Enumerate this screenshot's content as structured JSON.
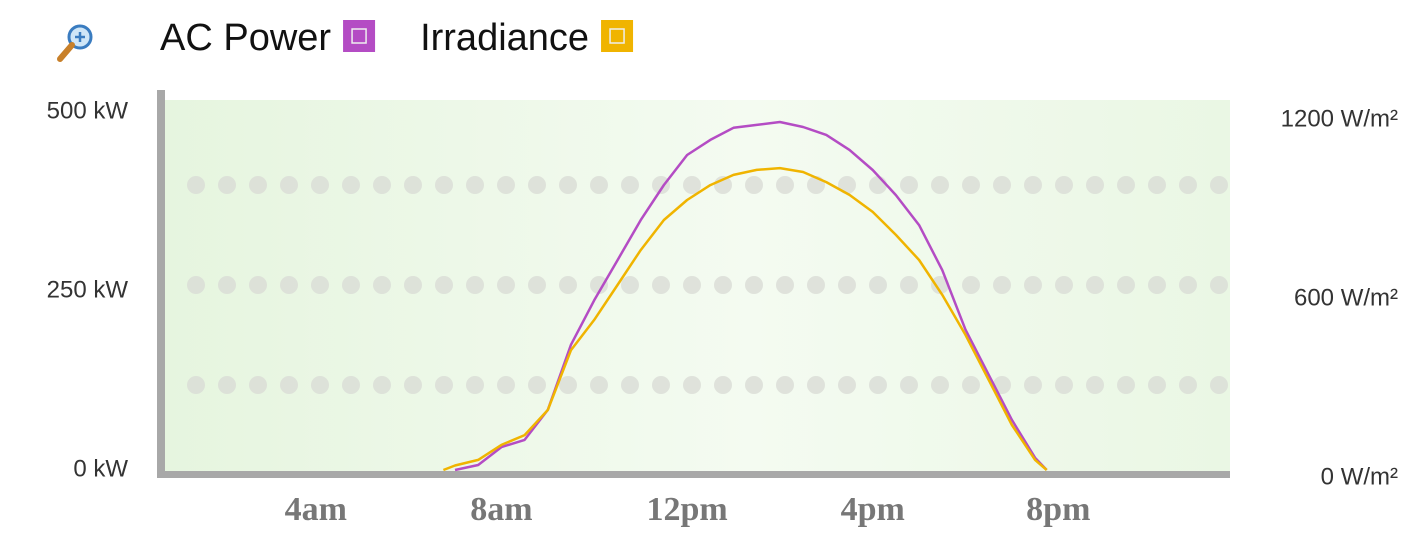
{
  "chart_data": {
    "type": "line",
    "x": [
      6.75,
      7,
      7.5,
      8,
      8.5,
      9,
      9.5,
      10,
      10.5,
      11,
      11.5,
      12,
      12.5,
      13,
      13.5,
      14,
      14.5,
      15,
      15.5,
      16,
      16.5,
      17,
      17.5,
      18,
      18.5,
      19,
      19.5,
      19.75
    ],
    "series": [
      {
        "name": "AC Power",
        "color": "#b44cc4",
        "values": [
          null,
          0,
          7,
          32,
          42,
          84,
          175,
          237,
          293,
          349,
          398,
          440,
          461,
          478,
          482,
          486,
          479,
          468,
          447,
          419,
          384,
          342,
          279,
          196,
          133,
          70,
          17,
          0
        ]
      },
      {
        "name": "Irradiance",
        "color": "#f0b400",
        "axis": "y2",
        "values": [
          0,
          15,
          34,
          84,
          117,
          201,
          402,
          503,
          620,
          737,
          838,
          905,
          955,
          989,
          1006,
          1012,
          999,
          965,
          922,
          865,
          788,
          704,
          587,
          453,
          302,
          151,
          34,
          0
        ]
      }
    ],
    "xlim": [
      0.75,
      23.7
    ],
    "xticks": [
      {
        "value": 4,
        "label": "4am"
      },
      {
        "value": 8,
        "label": "8am"
      },
      {
        "value": 12,
        "label": "12pm"
      },
      {
        "value": 16,
        "label": "4pm"
      },
      {
        "value": 20,
        "label": "8pm"
      }
    ],
    "ylim": [
      0,
      500
    ],
    "yticks": [
      {
        "value": 0,
        "label": "0 kW"
      },
      {
        "value": 250,
        "label": "250 kW"
      },
      {
        "value": 500,
        "label": "500 kW"
      }
    ],
    "y2lim": [
      0,
      1200
    ],
    "y2ticks": [
      {
        "value": 0,
        "label": "0 W/m²"
      },
      {
        "value": 600,
        "label": "600 W/m²"
      },
      {
        "value": 1200,
        "label": "1200 W/m²"
      }
    ]
  }
}
